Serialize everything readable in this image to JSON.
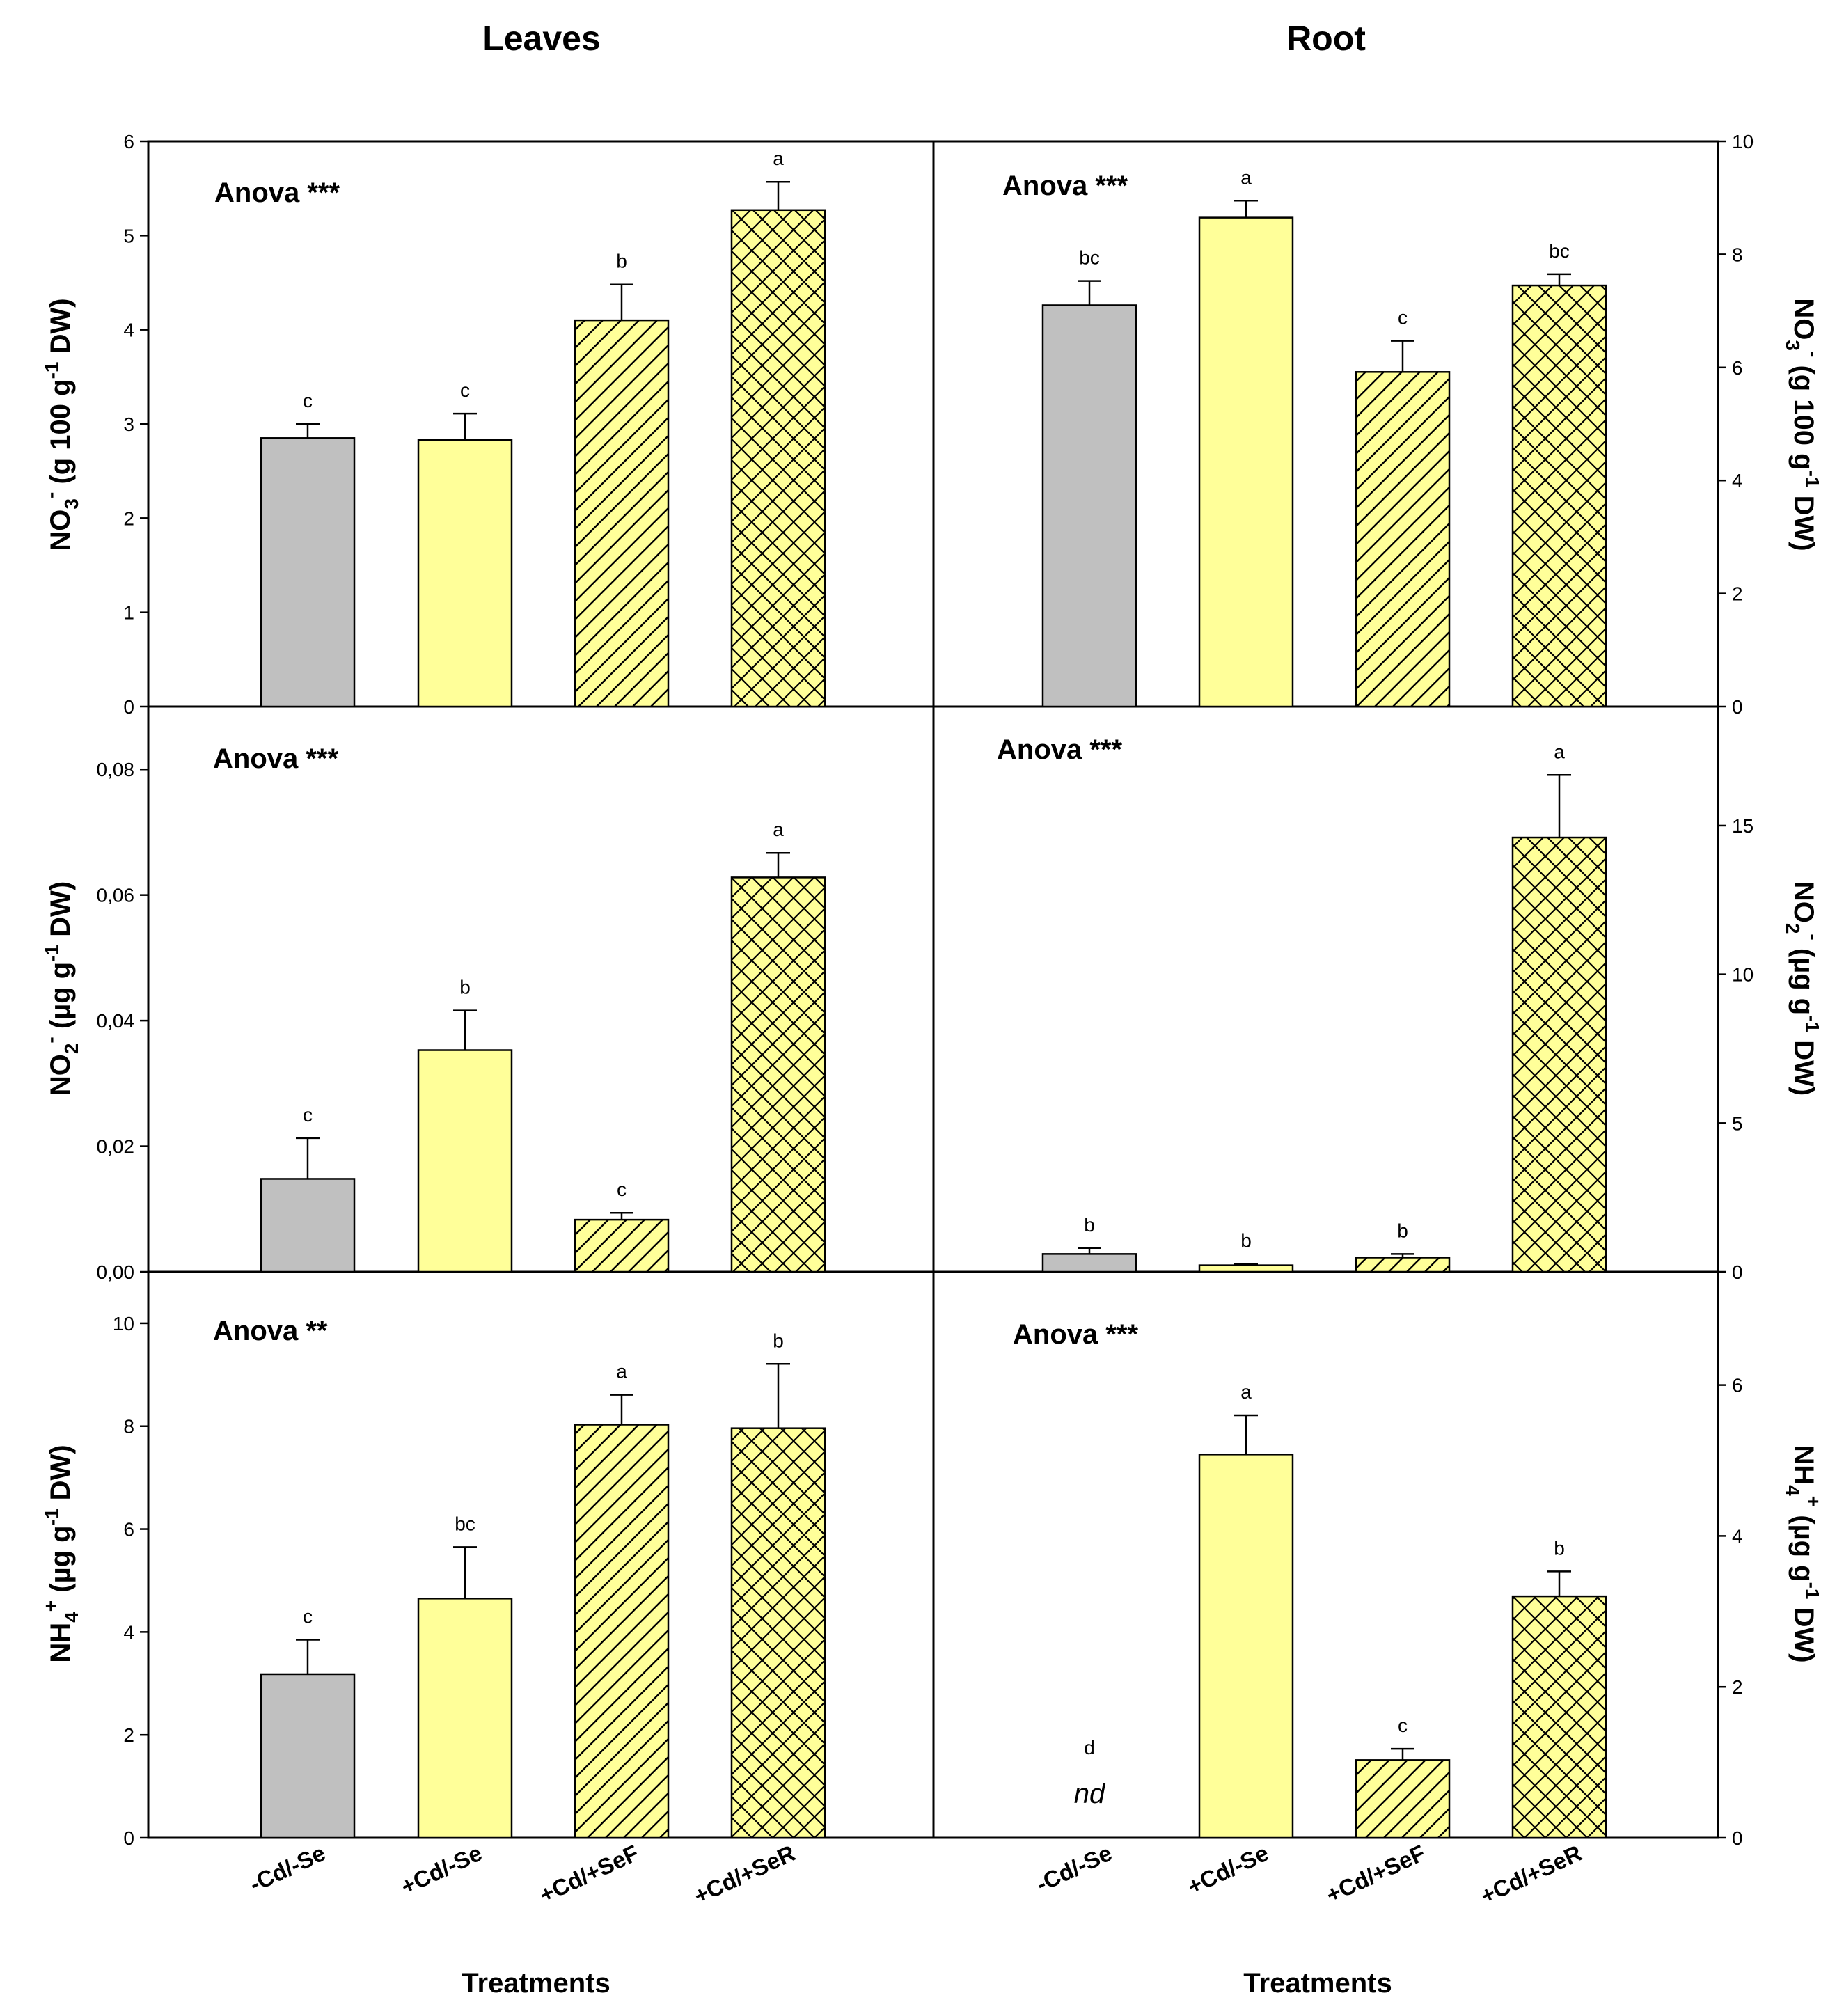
{
  "figure": {
    "column_titles": [
      "Leaves",
      "Root"
    ],
    "x_title": "Treatments",
    "categories": [
      "-Cd/-Se",
      "+Cd/-Se",
      "+Cd/+SeF",
      "+Cd/+SeR"
    ],
    "colors": {
      "gray_bar": "#c0c0c0",
      "yellow_bar": "#ffff99",
      "stroke": "#000000"
    },
    "bar_patterns": [
      "none",
      "none",
      "diagonal-hatch",
      "cross-hatch"
    ]
  },
  "chart_data": [
    {
      "type": "bar",
      "panel": "leaves-nitrate",
      "title": "Leaves",
      "ylabel": "NO3- (g 100 g-1 DW)",
      "ylabel_main": "NO",
      "ylabel_sub": "3",
      "ylabel_sup": "-",
      "ylabel_rest": " (g 100 g",
      "ylabel_sup2": "-1",
      "ylabel_end": " DW)",
      "ylim": [
        0,
        6
      ],
      "yticks": [
        0,
        1,
        2,
        3,
        4,
        5,
        6
      ],
      "ytick_labels": [
        "0",
        "1",
        "2",
        "3",
        "4",
        "5",
        "6"
      ],
      "annotation": "Anova ***",
      "categories": [
        "-Cd/-Se",
        "+Cd/-Se",
        "+Cd/+SeF",
        "+Cd/+SeR"
      ],
      "values": [
        2.85,
        2.83,
        4.1,
        5.27
      ],
      "errors": [
        0.15,
        0.28,
        0.38,
        0.3
      ],
      "letters": [
        "c",
        "c",
        "b",
        "a"
      ]
    },
    {
      "type": "bar",
      "panel": "root-nitrate",
      "title": "Root",
      "ylabel": "NO3- (g 100 g-1 DW)",
      "ylabel_main": "NO",
      "ylabel_sub": "3",
      "ylabel_sup": "-",
      "ylabel_rest": " (g 100 g",
      "ylabel_sup2": "-1",
      "ylabel_end": " DW)",
      "ylim": [
        0,
        10
      ],
      "yticks": [
        0,
        2,
        4,
        6,
        8,
        10
      ],
      "ytick_labels": [
        "0",
        "2",
        "4",
        "6",
        "8",
        "10"
      ],
      "annotation": "Anova ***",
      "categories": [
        "-Cd/-Se",
        "+Cd/-Se",
        "+Cd/+SeF",
        "+Cd/+SeR"
      ],
      "values": [
        7.1,
        8.65,
        5.92,
        7.45
      ],
      "errors": [
        0.43,
        0.3,
        0.55,
        0.2
      ],
      "letters": [
        "bc",
        "a",
        "c",
        "bc"
      ]
    },
    {
      "type": "bar",
      "panel": "leaves-nitrite",
      "title": "Leaves",
      "ylabel": "NO2- (µg g-1 DW)",
      "ylabel_main": "NO",
      "ylabel_sub": "2",
      "ylabel_sup": "-",
      "ylabel_rest": " (µg g",
      "ylabel_sup2": "-1",
      "ylabel_end": " DW)",
      "ylim": [
        0,
        0.09
      ],
      "yticks": [
        0,
        0.02,
        0.04,
        0.06,
        0.08
      ],
      "ytick_labels": [
        "0,00",
        "0,02",
        "0,04",
        "0,06",
        "0,08"
      ],
      "annotation": "Anova ***",
      "categories": [
        "-Cd/-Se",
        "+Cd/-Se",
        "+Cd/+SeF",
        "+Cd/+SeR"
      ],
      "values": [
        0.0148,
        0.0353,
        0.0083,
        0.0628
      ],
      "errors": [
        0.0065,
        0.0063,
        0.0011,
        0.0039
      ],
      "letters": [
        "c",
        "b",
        "c",
        "a"
      ]
    },
    {
      "type": "bar",
      "panel": "root-nitrite",
      "title": "Root",
      "ylabel": "NO2- (µg g-1 DW)",
      "ylabel_main": "NO",
      "ylabel_sub": "2",
      "ylabel_sup": "-",
      "ylabel_rest": " (µg g",
      "ylabel_sup2": "-1",
      "ylabel_end": " DW)",
      "ylim": [
        0,
        19
      ],
      "yticks": [
        0,
        5,
        10,
        15
      ],
      "ytick_labels": [
        "0",
        "5",
        "10",
        "15"
      ],
      "annotation": "Anova ***",
      "categories": [
        "-Cd/-Se",
        "+Cd/-Se",
        "+Cd/+SeF",
        "+Cd/+SeR"
      ],
      "values": [
        0.6,
        0.22,
        0.48,
        14.6
      ],
      "errors": [
        0.2,
        0.05,
        0.12,
        2.1
      ],
      "letters": [
        "b",
        "b",
        "b",
        "a"
      ]
    },
    {
      "type": "bar",
      "panel": "leaves-ammonium",
      "title": "Leaves",
      "ylabel": "NH4+ (µg g-1 DW)",
      "ylabel_main": "NH",
      "ylabel_sub": "4",
      "ylabel_sup": "+",
      "ylabel_rest": " (µg g",
      "ylabel_sup2": "-1",
      "ylabel_end": " DW)",
      "ylim": [
        0,
        11
      ],
      "yticks": [
        0,
        2,
        4,
        6,
        8,
        10
      ],
      "ytick_labels": [
        "0",
        "2",
        "4",
        "6",
        "8",
        "10"
      ],
      "annotation": "Anova **",
      "categories": [
        "-Cd/-Se",
        "+Cd/-Se",
        "+Cd/+SeF",
        "+Cd/+SeR"
      ],
      "values": [
        3.18,
        4.65,
        8.03,
        7.96
      ],
      "errors": [
        0.67,
        1.0,
        0.58,
        1.25
      ],
      "letters": [
        "c",
        "bc",
        "a",
        "b"
      ]
    },
    {
      "type": "bar",
      "panel": "root-ammonium",
      "title": "Root",
      "ylabel": "NH4+ (µg g-1 DW)",
      "ylabel_main": "NH",
      "ylabel_sub": "4",
      "ylabel_sup": "+",
      "ylabel_rest": " (µg g",
      "ylabel_sup2": "-1",
      "ylabel_end": " DW)",
      "ylim": [
        0,
        7.5
      ],
      "yticks": [
        0,
        2,
        4,
        6
      ],
      "ytick_labels": [
        "0",
        "2",
        "4",
        "6"
      ],
      "annotation": "Anova ***",
      "categories": [
        "-Cd/-Se",
        "+Cd/-Se",
        "+Cd/+SeF",
        "+Cd/+SeR"
      ],
      "values": [
        0,
        5.08,
        1.03,
        3.2
      ],
      "errors": [
        0,
        0.52,
        0.15,
        0.33
      ],
      "letters": [
        "d",
        "a",
        "c",
        "b"
      ],
      "missing_label": "nd"
    }
  ]
}
